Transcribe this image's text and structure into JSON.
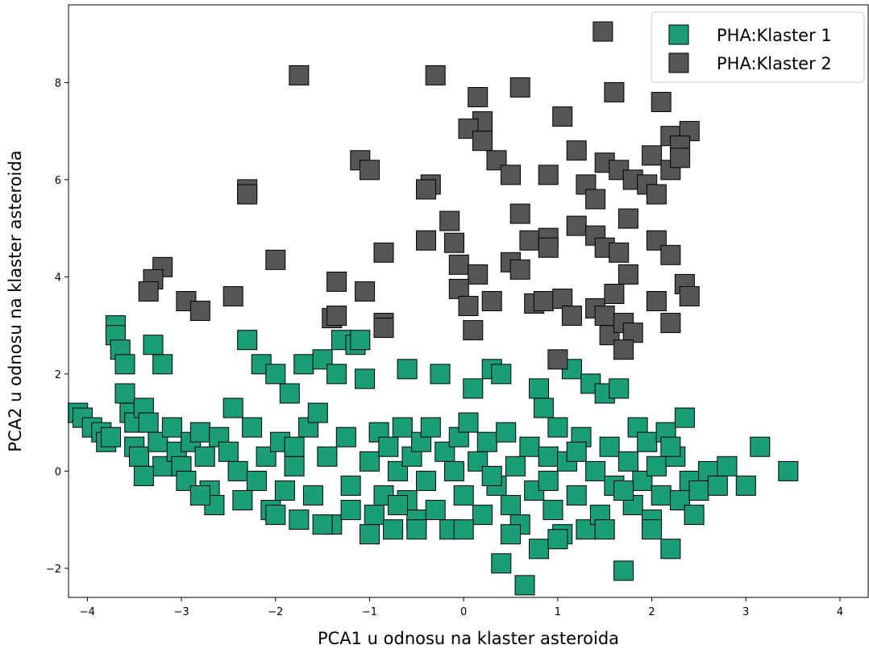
{
  "chart_data": {
    "type": "scatter",
    "title": "",
    "xlabel": "PCA1 u odnosu na klaster asteroida",
    "ylabel": "PCA2 u odnosu na klaster asteroida",
    "xlim": [
      -4.2,
      4.3
    ],
    "ylim": [
      -2.6,
      9.6
    ],
    "xticks": [
      -4,
      -3,
      -2,
      -1,
      0,
      1,
      2,
      3,
      4
    ],
    "yticks": [
      -2,
      0,
      2,
      4,
      6,
      8
    ],
    "xtick_labels": [
      "−4",
      "−3",
      "−2",
      "−1",
      "0",
      "1",
      "2",
      "3",
      "4"
    ],
    "ytick_labels": [
      "−2",
      "0",
      "2",
      "4",
      "6",
      "8"
    ],
    "grid": false,
    "legend_position": "top-right",
    "marker": "square",
    "series": [
      {
        "name": "PHA:Klaster 1",
        "color": "#1b9e77",
        "points": [
          [
            -4.1,
            1.2
          ],
          [
            -4.05,
            1.1
          ],
          [
            -3.95,
            0.9
          ],
          [
            -3.85,
            0.8
          ],
          [
            -3.8,
            0.6
          ],
          [
            -3.75,
            0.7
          ],
          [
            -3.7,
            3.0
          ],
          [
            -3.7,
            2.8
          ],
          [
            -3.65,
            2.5
          ],
          [
            -3.6,
            2.2
          ],
          [
            -3.6,
            1.6
          ],
          [
            -3.55,
            1.2
          ],
          [
            -3.5,
            1.0
          ],
          [
            -3.5,
            0.5
          ],
          [
            -3.45,
            0.3
          ],
          [
            -3.4,
            1.3
          ],
          [
            -3.35,
            1.0
          ],
          [
            -3.3,
            2.6
          ],
          [
            -3.2,
            2.2
          ],
          [
            -3.25,
            0.6
          ],
          [
            -3.2,
            0.1
          ],
          [
            -3.1,
            0.9
          ],
          [
            -3.05,
            0.4
          ],
          [
            -3.0,
            0.1
          ],
          [
            -2.95,
            -0.2
          ],
          [
            -2.9,
            0.6
          ],
          [
            -2.8,
            0.8
          ],
          [
            -2.75,
            0.3
          ],
          [
            -2.7,
            -0.4
          ],
          [
            -2.65,
            -0.7
          ],
          [
            -2.6,
            0.7
          ],
          [
            -2.5,
            0.4
          ],
          [
            -2.45,
            1.3
          ],
          [
            -2.4,
            0.0
          ],
          [
            -2.35,
            -0.6
          ],
          [
            -2.3,
            2.7
          ],
          [
            -2.25,
            0.9
          ],
          [
            -2.2,
            -0.2
          ],
          [
            -2.15,
            2.2
          ],
          [
            -2.1,
            0.3
          ],
          [
            -2.05,
            -0.8
          ],
          [
            -2.0,
            2.0
          ],
          [
            -1.95,
            0.6
          ],
          [
            -1.9,
            -0.4
          ],
          [
            -1.85,
            1.6
          ],
          [
            -1.8,
            0.1
          ],
          [
            -1.75,
            -1.0
          ],
          [
            -1.7,
            2.2
          ],
          [
            -1.65,
            0.9
          ],
          [
            -1.6,
            -0.5
          ],
          [
            -1.55,
            1.2
          ],
          [
            -1.5,
            2.3
          ],
          [
            -1.45,
            0.3
          ],
          [
            -1.4,
            -1.1
          ],
          [
            -1.35,
            2.0
          ],
          [
            -1.3,
            2.7
          ],
          [
            -1.25,
            0.7
          ],
          [
            -1.2,
            -0.3
          ],
          [
            -1.15,
            2.6
          ],
          [
            -1.1,
            2.7
          ],
          [
            -1.05,
            1.9
          ],
          [
            -1.0,
            0.2
          ],
          [
            -0.95,
            -0.9
          ],
          [
            -0.9,
            0.8
          ],
          [
            -0.85,
            -0.5
          ],
          [
            -0.8,
            0.5
          ],
          [
            -0.75,
            -1.2
          ],
          [
            -0.7,
            0.0
          ],
          [
            -0.65,
            0.9
          ],
          [
            -0.6,
            2.1
          ],
          [
            -0.6,
            -0.6
          ],
          [
            -0.55,
            0.3
          ],
          [
            -0.5,
            -1.0
          ],
          [
            -0.45,
            0.6
          ],
          [
            -0.4,
            -0.2
          ],
          [
            -0.35,
            0.9
          ],
          [
            -0.3,
            -0.8
          ],
          [
            -0.25,
            2.0
          ],
          [
            -0.2,
            0.4
          ],
          [
            -0.15,
            -1.2
          ],
          [
            -0.1,
            0.0
          ],
          [
            -0.05,
            0.7
          ],
          [
            0.0,
            -0.5
          ],
          [
            0.05,
            1.0
          ],
          [
            0.1,
            1.7
          ],
          [
            0.15,
            0.2
          ],
          [
            0.2,
            -0.9
          ],
          [
            0.25,
            0.6
          ],
          [
            0.3,
            2.1
          ],
          [
            0.35,
            -0.3
          ],
          [
            0.4,
            2.0
          ],
          [
            0.4,
            -1.9
          ],
          [
            0.45,
            0.8
          ],
          [
            0.5,
            -0.7
          ],
          [
            0.55,
            0.1
          ],
          [
            0.6,
            -1.1
          ],
          [
            0.65,
            -2.35
          ],
          [
            0.7,
            0.5
          ],
          [
            0.75,
            -0.4
          ],
          [
            0.8,
            1.7
          ],
          [
            0.8,
            -1.6
          ],
          [
            0.85,
            1.3
          ],
          [
            0.9,
            0.3
          ],
          [
            0.95,
            -0.8
          ],
          [
            1.0,
            0.9
          ],
          [
            1.05,
            -1.3
          ],
          [
            1.1,
            0.2
          ],
          [
            1.15,
            2.1
          ],
          [
            1.2,
            -0.5
          ],
          [
            1.25,
            0.7
          ],
          [
            1.3,
            -1.2
          ],
          [
            1.35,
            1.8
          ],
          [
            1.4,
            0.0
          ],
          [
            1.45,
            -0.9
          ],
          [
            1.5,
            1.6
          ],
          [
            1.55,
            0.5
          ],
          [
            1.6,
            -0.3
          ],
          [
            1.65,
            1.7
          ],
          [
            1.7,
            -2.05
          ],
          [
            1.75,
            0.2
          ],
          [
            1.8,
            -0.7
          ],
          [
            1.85,
            0.9
          ],
          [
            1.9,
            -0.2
          ],
          [
            1.95,
            0.6
          ],
          [
            2.0,
            -1.0
          ],
          [
            2.05,
            0.1
          ],
          [
            2.1,
            -0.5
          ],
          [
            2.15,
            0.8
          ],
          [
            2.2,
            -1.6
          ],
          [
            2.25,
            0.3
          ],
          [
            2.3,
            -0.6
          ],
          [
            2.35,
            1.1
          ],
          [
            2.4,
            -0.2
          ],
          [
            2.45,
            -0.9
          ],
          [
            2.5,
            -0.4
          ],
          [
            2.6,
            0.0
          ],
          [
            2.7,
            -0.3
          ],
          [
            2.8,
            0.1
          ],
          [
            3.0,
            -0.3
          ],
          [
            3.15,
            0.5
          ],
          [
            3.45,
            0.0
          ],
          [
            -2.0,
            -0.9
          ],
          [
            -1.5,
            -1.1
          ],
          [
            -1.0,
            -1.3
          ],
          [
            -0.5,
            -1.2
          ],
          [
            0.0,
            -1.2
          ],
          [
            0.5,
            -1.3
          ],
          [
            1.0,
            -1.4
          ],
          [
            1.5,
            -1.2
          ],
          [
            2.0,
            -1.2
          ],
          [
            -2.8,
            -0.5
          ],
          [
            -1.2,
            -0.8
          ],
          [
            0.3,
            -0.1
          ],
          [
            1.7,
            -0.4
          ],
          [
            -3.4,
            -0.1
          ],
          [
            -0.7,
            -0.7
          ],
          [
            0.9,
            -0.2
          ],
          [
            2.2,
            0.5
          ],
          [
            -1.8,
            0.5
          ],
          [
            1.2,
            0.4
          ]
        ]
      },
      {
        "name": "PHA:Klaster 2",
        "color": "#555555",
        "points": [
          [
            1.48,
            9.05
          ],
          [
            -1.75,
            8.15
          ],
          [
            -0.3,
            8.15
          ],
          [
            0.6,
            7.9
          ],
          [
            1.6,
            7.8
          ],
          [
            0.15,
            7.7
          ],
          [
            2.1,
            7.6
          ],
          [
            1.05,
            7.3
          ],
          [
            0.2,
            7.2
          ],
          [
            0.05,
            7.05
          ],
          [
            0.2,
            6.8
          ],
          [
            2.2,
            6.9
          ],
          [
            2.4,
            7.0
          ],
          [
            2.3,
            6.7
          ],
          [
            2.0,
            6.5
          ],
          [
            1.2,
            6.6
          ],
          [
            0.35,
            6.4
          ],
          [
            0.5,
            6.1
          ],
          [
            -1.1,
            6.4
          ],
          [
            -1.0,
            6.2
          ],
          [
            0.9,
            6.1
          ],
          [
            1.5,
            6.35
          ],
          [
            1.65,
            6.2
          ],
          [
            1.8,
            6.0
          ],
          [
            2.2,
            6.2
          ],
          [
            2.3,
            6.45
          ],
          [
            1.3,
            5.9
          ],
          [
            -2.3,
            5.8
          ],
          [
            -2.3,
            5.7
          ],
          [
            -0.35,
            5.9
          ],
          [
            -0.4,
            5.8
          ],
          [
            1.95,
            5.9
          ],
          [
            2.05,
            5.7
          ],
          [
            1.4,
            5.6
          ],
          [
            -0.15,
            5.15
          ],
          [
            0.6,
            5.3
          ],
          [
            1.2,
            5.05
          ],
          [
            1.75,
            5.2
          ],
          [
            0.7,
            4.75
          ],
          [
            0.9,
            4.8
          ],
          [
            1.4,
            4.85
          ],
          [
            0.9,
            4.6
          ],
          [
            1.5,
            4.6
          ],
          [
            2.05,
            4.75
          ],
          [
            2.2,
            4.45
          ],
          [
            -0.4,
            4.75
          ],
          [
            -0.1,
            4.7
          ],
          [
            1.65,
            4.5
          ],
          [
            -0.85,
            4.5
          ],
          [
            -2.0,
            4.35
          ],
          [
            -3.2,
            4.2
          ],
          [
            0.5,
            4.3
          ],
          [
            0.6,
            4.15
          ],
          [
            -0.05,
            4.25
          ],
          [
            0.15,
            4.05
          ],
          [
            1.75,
            4.05
          ],
          [
            -3.3,
            3.95
          ],
          [
            -3.35,
            3.7
          ],
          [
            -1.35,
            3.9
          ],
          [
            -1.05,
            3.7
          ],
          [
            -0.05,
            3.75
          ],
          [
            0.05,
            3.4
          ],
          [
            0.3,
            3.5
          ],
          [
            2.35,
            3.85
          ],
          [
            2.4,
            3.6
          ],
          [
            0.75,
            3.45
          ],
          [
            0.85,
            3.5
          ],
          [
            1.05,
            3.55
          ],
          [
            1.15,
            3.2
          ],
          [
            1.4,
            3.35
          ],
          [
            1.5,
            3.2
          ],
          [
            2.05,
            3.5
          ],
          [
            1.6,
            3.65
          ],
          [
            -2.95,
            3.5
          ],
          [
            -2.8,
            3.3
          ],
          [
            -2.45,
            3.6
          ],
          [
            -1.4,
            3.15
          ],
          [
            -1.35,
            3.2
          ],
          [
            -0.85,
            3.05
          ],
          [
            -0.85,
            2.95
          ],
          [
            0.1,
            2.9
          ],
          [
            1.55,
            2.8
          ],
          [
            1.7,
            3.05
          ],
          [
            1.8,
            2.85
          ],
          [
            2.2,
            3.05
          ],
          [
            1.7,
            2.5
          ],
          [
            1.0,
            2.3
          ]
        ]
      }
    ]
  },
  "legend": [
    {
      "label": "PHA:Klaster 1",
      "color": "#1b9e77"
    },
    {
      "label": "PHA:Klaster 2",
      "color": "#555555"
    }
  ]
}
